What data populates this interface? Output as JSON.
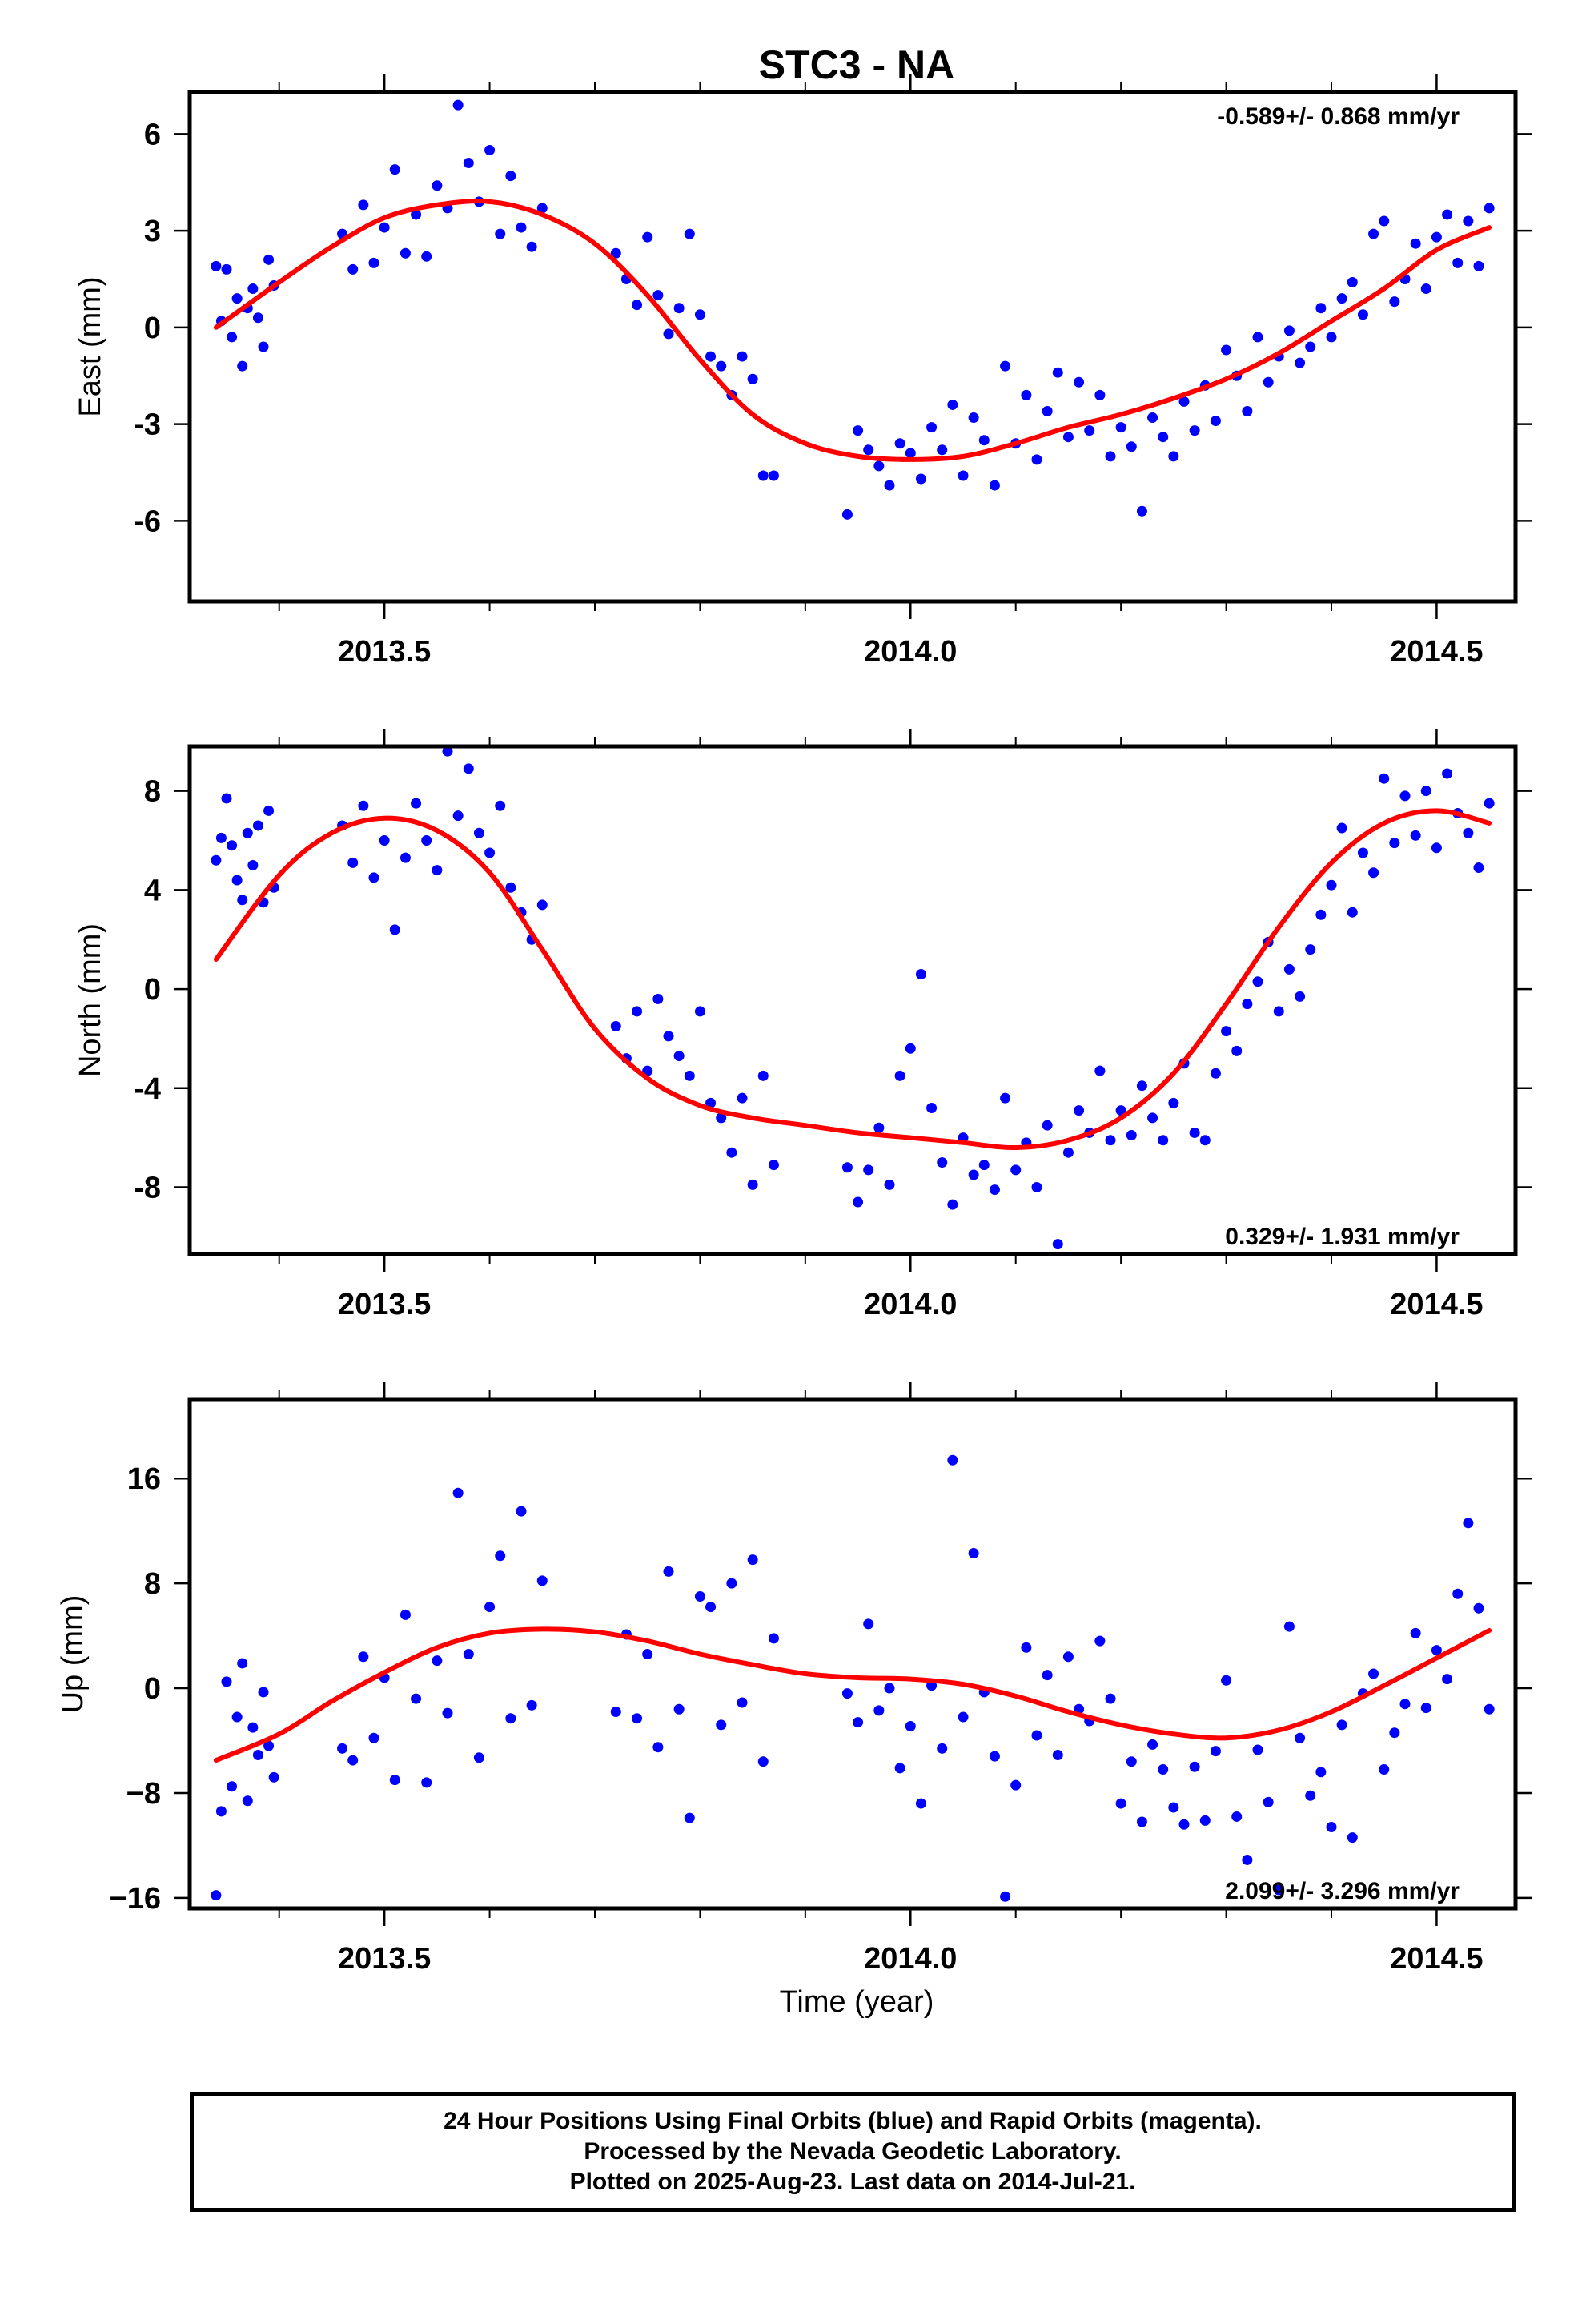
{
  "title": "STC3 - NA",
  "xlabel": "Time (year)",
  "footer": {
    "line1": "24 Hour Positions Using Final Orbits (blue) and Rapid Orbits (magenta).",
    "line2": "Processed by the Nevada Geodetic Laboratory.",
    "line3": "Plotted on 2025-Aug-23. Last data on 2014-Jul-21."
  },
  "colors": {
    "final_orbits": "#0000ff",
    "fit": "#ff0000",
    "frame": "#000000"
  },
  "chart_data": [
    {
      "type": "scatter",
      "ylabel": "East (mm)",
      "rate_label": "-0.589+/- 0.868 mm/yr",
      "rate_position": "top-right",
      "xlim": [
        2013.315,
        2014.575
      ],
      "ylim": [
        -8.5,
        7.3
      ],
      "xticks": [
        2013.5,
        2014.0,
        2014.5
      ],
      "xtick_labels": [
        "2013.5",
        "2014.0",
        "2014.5"
      ],
      "yticks": [
        -6,
        -3,
        0,
        3,
        6
      ],
      "ytick_labels": [
        "-6",
        "-3",
        "0",
        "3",
        "6"
      ],
      "series": [
        {
          "type": "scatter",
          "x": [
            2013.34,
            2013.345,
            2013.35,
            2013.355,
            2013.36,
            2013.365,
            2013.37,
            2013.375,
            2013.38,
            2013.385,
            2013.39,
            2013.395,
            2013.46,
            2013.47,
            2013.48,
            2013.49,
            2013.5,
            2013.51,
            2013.52,
            2013.53,
            2013.54,
            2013.55,
            2013.56,
            2013.57,
            2013.58,
            2013.59,
            2013.6,
            2013.61,
            2013.62,
            2013.63,
            2013.64,
            2013.65,
            2013.72,
            2013.73,
            2013.74,
            2013.75,
            2013.76,
            2013.77,
            2013.78,
            2013.79,
            2013.8,
            2013.81,
            2013.82,
            2013.83,
            2013.84,
            2013.85,
            2013.86,
            2013.87,
            2013.94,
            2013.95,
            2013.96,
            2013.97,
            2013.98,
            2013.99,
            2014.0,
            2014.01,
            2014.02,
            2014.03,
            2014.04,
            2014.05,
            2014.06,
            2014.07,
            2014.08,
            2014.09,
            2014.1,
            2014.11,
            2014.12,
            2014.13,
            2014.14,
            2014.15,
            2014.16,
            2014.17,
            2014.18,
            2014.19,
            2014.2,
            2014.21,
            2014.22,
            2014.23,
            2014.24,
            2014.25,
            2014.26,
            2014.27,
            2014.28,
            2014.29,
            2014.3,
            2014.31,
            2014.32,
            2014.33,
            2014.34,
            2014.35,
            2014.36,
            2014.37,
            2014.38,
            2014.39,
            2014.4,
            2014.41,
            2014.42,
            2014.43,
            2014.44,
            2014.45,
            2014.46,
            2014.47,
            2014.48,
            2014.49,
            2014.5,
            2014.51,
            2014.52,
            2014.53,
            2014.54,
            2014.55
          ],
          "y": [
            1.9,
            0.2,
            1.8,
            -0.3,
            0.9,
            -1.2,
            0.6,
            1.2,
            0.3,
            -0.6,
            2.1,
            1.3,
            2.9,
            1.8,
            3.8,
            2.0,
            3.1,
            4.9,
            2.3,
            3.5,
            2.2,
            4.4,
            3.7,
            6.9,
            5.1,
            3.9,
            5.5,
            2.9,
            4.7,
            3.1,
            2.5,
            3.7,
            2.3,
            1.5,
            0.7,
            2.8,
            1.0,
            -0.2,
            0.6,
            2.9,
            0.4,
            -0.9,
            -1.2,
            -2.1,
            -0.9,
            -1.6,
            -4.6,
            -4.6,
            -5.8,
            -3.2,
            -3.8,
            -4.3,
            -4.9,
            -3.6,
            -3.9,
            -4.7,
            -3.1,
            -3.8,
            -2.4,
            -4.6,
            -2.8,
            -3.5,
            -4.9,
            -1.2,
            -3.6,
            -2.1,
            -4.1,
            -2.6,
            -1.4,
            -3.4,
            -1.7,
            -3.2,
            -2.1,
            -4.0,
            -3.1,
            -3.7,
            -5.7,
            -2.8,
            -3.4,
            -4.0,
            -2.3,
            -3.2,
            -1.8,
            -2.9,
            -0.7,
            -1.5,
            -2.6,
            -0.3,
            -1.7,
            -0.9,
            -0.1,
            -1.1,
            -0.6,
            0.6,
            -0.3,
            0.9,
            1.4,
            0.4,
            2.9,
            3.3,
            0.8,
            1.5,
            2.6,
            1.2,
            2.8,
            3.5,
            2.0,
            3.3,
            1.9,
            3.7
          ],
          "color": "#0000ff"
        },
        {
          "type": "line",
          "x": [
            2013.34,
            2013.4,
            2013.45,
            2013.5,
            2013.55,
            2013.6,
            2013.65,
            2013.7,
            2013.75,
            2013.8,
            2013.85,
            2013.9,
            2013.95,
            2014.0,
            2014.05,
            2014.1,
            2014.15,
            2014.2,
            2014.25,
            2014.3,
            2014.35,
            2014.4,
            2014.45,
            2014.5,
            2014.55
          ],
          "y": [
            0.0,
            1.4,
            2.5,
            3.4,
            3.8,
            3.9,
            3.5,
            2.6,
            1.0,
            -1.0,
            -2.7,
            -3.6,
            -4.0,
            -4.1,
            -4.0,
            -3.6,
            -3.1,
            -2.7,
            -2.2,
            -1.6,
            -0.8,
            0.2,
            1.2,
            2.4,
            3.1
          ],
          "color": "#ff0000"
        }
      ]
    },
    {
      "type": "scatter",
      "ylabel": "North (mm)",
      "rate_label": "0.329+/- 1.931 mm/yr",
      "rate_position": "bottom-right",
      "xlim": [
        2013.315,
        2014.575
      ],
      "ylim": [
        -10.7,
        9.8
      ],
      "xticks": [
        2013.5,
        2014.0,
        2014.5
      ],
      "xtick_labels": [
        "2013.5",
        "2014.0",
        "2014.5"
      ],
      "yticks": [
        -8,
        -4,
        0,
        4,
        8
      ],
      "ytick_labels": [
        "-8",
        "-4",
        "0",
        "4",
        "8"
      ],
      "series": [
        {
          "type": "scatter",
          "x": [
            2013.34,
            2013.345,
            2013.35,
            2013.355,
            2013.36,
            2013.365,
            2013.37,
            2013.375,
            2013.38,
            2013.385,
            2013.39,
            2013.395,
            2013.46,
            2013.47,
            2013.48,
            2013.49,
            2013.5,
            2013.51,
            2013.52,
            2013.53,
            2013.54,
            2013.55,
            2013.56,
            2013.57,
            2013.58,
            2013.59,
            2013.6,
            2013.61,
            2013.62,
            2013.63,
            2013.64,
            2013.65,
            2013.72,
            2013.73,
            2013.74,
            2013.75,
            2013.76,
            2013.77,
            2013.78,
            2013.79,
            2013.8,
            2013.81,
            2013.82,
            2013.83,
            2013.84,
            2013.85,
            2013.86,
            2013.87,
            2013.94,
            2013.95,
            2013.96,
            2013.97,
            2013.98,
            2013.99,
            2014.0,
            2014.01,
            2014.02,
            2014.03,
            2014.04,
            2014.05,
            2014.06,
            2014.07,
            2014.08,
            2014.09,
            2014.1,
            2014.11,
            2014.12,
            2014.13,
            2014.14,
            2014.15,
            2014.16,
            2014.17,
            2014.18,
            2014.19,
            2014.2,
            2014.21,
            2014.22,
            2014.23,
            2014.24,
            2014.25,
            2014.26,
            2014.27,
            2014.28,
            2014.29,
            2014.3,
            2014.31,
            2014.32,
            2014.33,
            2014.34,
            2014.35,
            2014.36,
            2014.37,
            2014.38,
            2014.39,
            2014.4,
            2014.41,
            2014.42,
            2014.43,
            2014.44,
            2014.45,
            2014.46,
            2014.47,
            2014.48,
            2014.49,
            2014.5,
            2014.51,
            2014.52,
            2014.53,
            2014.54,
            2014.55
          ],
          "y": [
            5.2,
            6.1,
            7.7,
            5.8,
            4.4,
            3.6,
            6.3,
            5.0,
            6.6,
            3.5,
            7.2,
            4.1,
            6.6,
            5.1,
            7.4,
            4.5,
            6.0,
            2.4,
            5.3,
            7.5,
            6.0,
            4.8,
            9.6,
            7.0,
            8.9,
            6.3,
            5.5,
            7.4,
            4.1,
            3.1,
            2.0,
            3.4,
            -1.5,
            -2.8,
            -0.9,
            -3.3,
            -0.4,
            -1.9,
            -2.7,
            -3.5,
            -0.9,
            -4.6,
            -5.2,
            -6.6,
            -4.4,
            -7.9,
            -3.5,
            -7.1,
            -7.2,
            -8.6,
            -7.3,
            -5.6,
            -7.9,
            -3.5,
            -2.4,
            0.6,
            -4.8,
            -7.0,
            -8.7,
            -6.0,
            -7.5,
            -7.1,
            -8.1,
            -4.4,
            -7.3,
            -6.2,
            -8.0,
            -5.5,
            -10.3,
            -6.6,
            -4.9,
            -5.8,
            -3.3,
            -6.1,
            -4.9,
            -5.9,
            -3.9,
            -5.2,
            -6.1,
            -4.6,
            -3.0,
            -5.8,
            -6.1,
            -3.4,
            -1.7,
            -2.5,
            -0.6,
            0.3,
            1.9,
            -0.9,
            0.8,
            -0.3,
            1.6,
            3.0,
            4.2,
            6.5,
            3.1,
            5.5,
            4.7,
            8.5,
            5.9,
            7.8,
            6.2,
            8.0,
            5.7,
            8.7,
            7.1,
            6.3,
            4.9,
            7.5
          ],
          "color": "#0000ff"
        },
        {
          "type": "line",
          "x": [
            2013.34,
            2013.4,
            2013.45,
            2013.5,
            2013.55,
            2013.6,
            2013.65,
            2013.7,
            2013.75,
            2013.8,
            2013.85,
            2013.9,
            2013.95,
            2014.0,
            2014.05,
            2014.1,
            2014.15,
            2014.2,
            2014.25,
            2014.3,
            2014.35,
            2014.4,
            2014.45,
            2014.5,
            2014.55
          ],
          "y": [
            1.2,
            4.6,
            6.3,
            6.9,
            6.4,
            4.7,
            1.6,
            -1.6,
            -3.6,
            -4.7,
            -5.2,
            -5.5,
            -5.8,
            -6.0,
            -6.2,
            -6.4,
            -6.1,
            -5.2,
            -3.4,
            -0.6,
            2.5,
            5.1,
            6.7,
            7.2,
            6.7
          ],
          "color": "#ff0000"
        }
      ]
    },
    {
      "type": "scatter",
      "ylabel": "Up (mm)",
      "rate_label": "2.099+/- 3.296 mm/yr",
      "rate_position": "bottom-right",
      "xlim": [
        2013.315,
        2014.575
      ],
      "ylim": [
        -16.8,
        22.0
      ],
      "xticks": [
        2013.5,
        2014.0,
        2014.5
      ],
      "xtick_labels": [
        "2013.5",
        "2014.0",
        "2014.5"
      ],
      "yticks": [
        -16,
        -8,
        0,
        8,
        16
      ],
      "ytick_labels": [
        "−16",
        "−8",
        "0",
        "8",
        "16"
      ],
      "series": [
        {
          "type": "scatter",
          "x": [
            2013.34,
            2013.345,
            2013.35,
            2013.355,
            2013.36,
            2013.365,
            2013.37,
            2013.375,
            2013.38,
            2013.385,
            2013.39,
            2013.395,
            2013.46,
            2013.47,
            2013.48,
            2013.49,
            2013.5,
            2013.51,
            2013.52,
            2013.53,
            2013.54,
            2013.55,
            2013.56,
            2013.57,
            2013.58,
            2013.59,
            2013.6,
            2013.61,
            2013.62,
            2013.63,
            2013.64,
            2013.65,
            2013.72,
            2013.73,
            2013.74,
            2013.75,
            2013.76,
            2013.77,
            2013.78,
            2013.79,
            2013.8,
            2013.81,
            2013.82,
            2013.83,
            2013.84,
            2013.85,
            2013.86,
            2013.87,
            2013.94,
            2013.95,
            2013.96,
            2013.97,
            2013.98,
            2013.99,
            2014.0,
            2014.01,
            2014.02,
            2014.03,
            2014.04,
            2014.05,
            2014.06,
            2014.07,
            2014.08,
            2014.09,
            2014.1,
            2014.11,
            2014.12,
            2014.13,
            2014.14,
            2014.15,
            2014.16,
            2014.17,
            2014.18,
            2014.19,
            2014.2,
            2014.21,
            2014.22,
            2014.23,
            2014.24,
            2014.25,
            2014.26,
            2014.27,
            2014.28,
            2014.29,
            2014.3,
            2014.31,
            2014.32,
            2014.33,
            2014.34,
            2014.35,
            2014.36,
            2014.37,
            2014.38,
            2014.39,
            2014.4,
            2014.41,
            2014.42,
            2014.43,
            2014.44,
            2014.45,
            2014.46,
            2014.47,
            2014.48,
            2014.49,
            2014.5,
            2014.51,
            2014.52,
            2014.53,
            2014.54,
            2014.55
          ],
          "y": [
            -15.8,
            -9.4,
            0.5,
            -7.5,
            -2.2,
            1.9,
            -8.6,
            -3.0,
            -5.1,
            -0.3,
            -4.4,
            -6.8,
            -4.6,
            -5.5,
            2.4,
            -3.8,
            0.8,
            -7.0,
            5.6,
            -0.8,
            -7.2,
            2.1,
            -1.9,
            14.9,
            2.6,
            -5.3,
            6.2,
            10.1,
            -2.3,
            13.5,
            -1.3,
            8.2,
            -1.8,
            4.1,
            -2.3,
            2.6,
            -4.5,
            8.9,
            -1.6,
            -9.9,
            7.0,
            6.2,
            -2.8,
            8.0,
            -1.1,
            9.8,
            -5.6,
            3.8,
            -0.4,
            -2.6,
            4.9,
            -1.7,
            0.0,
            -6.1,
            -2.9,
            -8.8,
            0.2,
            -4.6,
            17.4,
            -2.2,
            10.3,
            -0.3,
            -5.2,
            -15.9,
            -7.4,
            3.1,
            -3.6,
            1.0,
            -5.1,
            2.4,
            -1.6,
            -2.5,
            3.6,
            -0.8,
            -8.8,
            -5.6,
            -10.2,
            -4.3,
            -6.2,
            -9.1,
            -10.4,
            -6.0,
            -10.1,
            -4.8,
            0.6,
            -9.8,
            -13.1,
            -4.7,
            -8.7,
            -15.4,
            4.7,
            -3.8,
            -8.2,
            -6.4,
            -10.6,
            -2.8,
            -11.4,
            -0.4,
            1.1,
            -6.2,
            -3.4,
            -1.2,
            4.2,
            -1.5,
            2.9,
            0.7,
            7.2,
            12.6,
            6.1,
            -1.6
          ],
          "color": "#0000ff"
        },
        {
          "type": "line",
          "x": [
            2013.34,
            2013.4,
            2013.45,
            2013.5,
            2013.55,
            2013.6,
            2013.65,
            2013.7,
            2013.75,
            2013.8,
            2013.85,
            2013.9,
            2013.95,
            2014.0,
            2014.05,
            2014.1,
            2014.15,
            2014.2,
            2014.25,
            2014.3,
            2014.35,
            2014.4,
            2014.45,
            2014.5,
            2014.55
          ],
          "y": [
            -5.5,
            -3.5,
            -1.0,
            1.2,
            3.1,
            4.2,
            4.5,
            4.3,
            3.6,
            2.6,
            1.8,
            1.1,
            0.8,
            0.7,
            0.3,
            -0.6,
            -1.8,
            -2.8,
            -3.5,
            -3.8,
            -3.2,
            -1.8,
            0.2,
            2.3,
            4.4
          ],
          "color": "#ff0000"
        }
      ]
    }
  ]
}
